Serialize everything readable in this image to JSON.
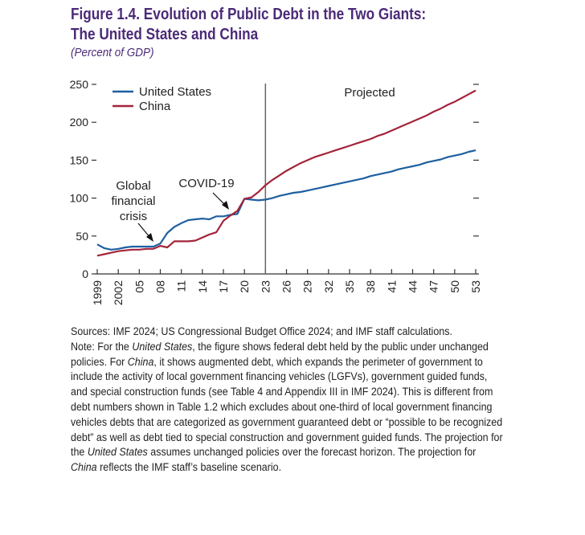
{
  "header": {
    "title_line1": "Figure 1.4. Evolution of Public Debt in the Two Giants:",
    "title_line2": "The United States and China",
    "subtitle": "(Percent of GDP)"
  },
  "colors": {
    "title": "#4b2a78",
    "united_states": "#1f5fa0",
    "china": "#a3243a",
    "axis": "#333333",
    "divider": "#666666"
  },
  "chart_data": {
    "type": "line",
    "title": "Evolution of Public Debt in the Two Giants: The United States and China",
    "xlabel": "",
    "ylabel": "Percent of GDP",
    "xlim": [
      1999,
      2053
    ],
    "ylim": [
      0,
      250
    ],
    "yticks": [
      0,
      50,
      100,
      150,
      200,
      250
    ],
    "ytick_labels": [
      "0",
      "50",
      "100",
      "150",
      "200",
      "250"
    ],
    "xticks": [
      1999,
      2002,
      2005,
      2008,
      2011,
      2014,
      2017,
      2020,
      2023,
      2026,
      2029,
      2032,
      2035,
      2038,
      2041,
      2044,
      2047,
      2050,
      2053
    ],
    "xtick_labels": [
      "1999",
      "2002",
      "05",
      "08",
      "11",
      "14",
      "17",
      "20",
      "23",
      "26",
      "29",
      "32",
      "35",
      "38",
      "41",
      "44",
      "47",
      "50",
      "53"
    ],
    "grid": false,
    "legend_position": "top-left",
    "projection_start": 2023,
    "projection_label": "Projected",
    "x": [
      1999,
      2000,
      2001,
      2002,
      2003,
      2004,
      2005,
      2006,
      2007,
      2008,
      2009,
      2010,
      2011,
      2012,
      2013,
      2014,
      2015,
      2016,
      2017,
      2018,
      2019,
      2020,
      2021,
      2022,
      2023,
      2024,
      2025,
      2026,
      2027,
      2028,
      2029,
      2030,
      2031,
      2032,
      2033,
      2034,
      2035,
      2036,
      2037,
      2038,
      2039,
      2040,
      2041,
      2042,
      2043,
      2044,
      2045,
      2046,
      2047,
      2048,
      2049,
      2050,
      2051,
      2052,
      2053
    ],
    "series": [
      {
        "name": "United States",
        "values": [
          39,
          34,
          32,
          33,
          35,
          36,
          36,
          36,
          36,
          40,
          54,
          62,
          67,
          71,
          72,
          73,
          72,
          76,
          76,
          78,
          79,
          99,
          98,
          97,
          98,
          100,
          103,
          105,
          107,
          108,
          110,
          112,
          114,
          116,
          118,
          120,
          122,
          124,
          126,
          129,
          131,
          133,
          135,
          138,
          140,
          142,
          144,
          147,
          149,
          151,
          154,
          156,
          158,
          161,
          163
        ]
      },
      {
        "name": "China",
        "values": [
          24,
          26,
          28,
          30,
          31,
          32,
          32,
          33,
          33,
          37,
          35,
          43,
          43,
          43,
          44,
          48,
          52,
          55,
          70,
          77,
          83,
          99,
          101,
          108,
          117,
          124,
          130,
          136,
          141,
          146,
          150,
          154,
          157,
          160,
          163,
          166,
          169,
          172,
          175,
          178,
          182,
          185,
          189,
          193,
          197,
          201,
          205,
          209,
          214,
          218,
          223,
          227,
          232,
          237,
          242
        ]
      }
    ],
    "annotations": [
      {
        "label_lines": [
          "Global",
          "financial",
          "crisis"
        ],
        "points_to_year": 2008
      },
      {
        "label": "COVID-19",
        "points_to_year": 2018
      }
    ]
  },
  "notes": {
    "sources": "Sources: IMF 2024; US Congressional Budget Office 2024; and IMF staff calculations.",
    "note_parts": [
      {
        "text": "Note: For the ",
        "italic": false
      },
      {
        "text": "United States",
        "italic": true
      },
      {
        "text": ", the figure shows federal debt held by the public under unchanged policies. For ",
        "italic": false
      },
      {
        "text": "China",
        "italic": true
      },
      {
        "text": ", it shows augmented debt, which expands the perimeter of government to include the activity of local government financing vehicles (LGFVs), government guided funds, and special construction funds (see Table 4 and Appendix III in IMF 2024). This is different from debt numbers shown in Table 1.2 which excludes about one-third of local government financing vehicles debts that are categorized as government guaranteed debt or “possible to be recognized debt” as well as debt tied to special construction and government guided funds. The projection for the ",
        "italic": false
      },
      {
        "text": "United States",
        "italic": true
      },
      {
        "text": " assumes unchanged policies over the forecast horizon. The projection for ",
        "italic": false
      },
      {
        "text": "China",
        "italic": true
      },
      {
        "text": " reflects the IMF staff’s baseline scenario.",
        "italic": false
      }
    ]
  }
}
